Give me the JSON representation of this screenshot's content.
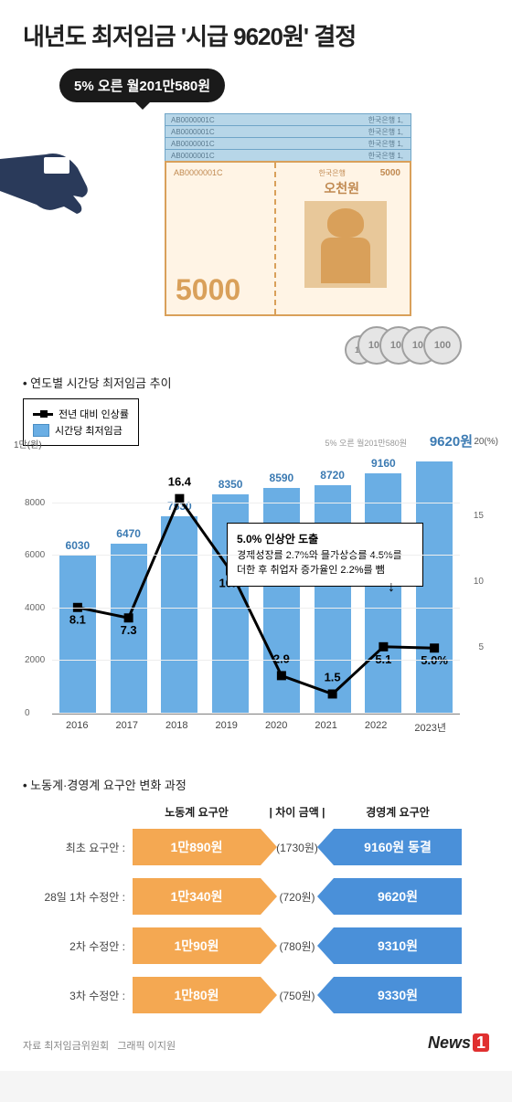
{
  "title_pre": "내년도 최저임금 ",
  "title_hl": "'시급 9620원'",
  "title_post": " 결정",
  "bubble": "5% 오른 월201만580원",
  "bills_small": [
    {
      "serial": "AB0000001C",
      "bank": "한국은행",
      "denom": "1,"
    },
    {
      "serial": "AB0000001C",
      "bank": "한국은행",
      "denom": "1,"
    },
    {
      "serial": "AB0000001C",
      "bank": "한국은행",
      "denom": "1,"
    },
    {
      "serial": "AB0000001C",
      "bank": "한국은행",
      "denom": "1,"
    }
  ],
  "bill5000": {
    "serial": "AB0000001C",
    "bank": "한국은행",
    "denom_kr": "오천원",
    "denom_sm": "5000",
    "big": "5000"
  },
  "coins": [
    "10",
    "100",
    "100",
    "100",
    "100"
  ],
  "chart_title": "연도별 시간당 최저임금 추이",
  "legend": {
    "line": "전년 대비 인상률",
    "bar": "시간당 최저임금"
  },
  "y_left_unit": "1만(원)",
  "y_right_unit": "20(%)",
  "y_left_ticks": [
    "0",
    "2000",
    "4000",
    "6000",
    "8000"
  ],
  "y_right_ticks": [
    "5",
    "10",
    "15"
  ],
  "years": [
    "2016",
    "2017",
    "2018",
    "2019",
    "2020",
    "2021",
    "2022",
    "2023년"
  ],
  "wages": [
    6030,
    6470,
    7530,
    8350,
    8590,
    8720,
    9160,
    9620
  ],
  "wage_labels": [
    "6030",
    "6470",
    "7530",
    "8350",
    "8590",
    "8720",
    "9160",
    "9620원"
  ],
  "rates": [
    8.1,
    7.3,
    16.4,
    10.9,
    2.9,
    1.5,
    5.1,
    5.0
  ],
  "rate_labels": [
    "8.1",
    "7.3",
    "16.4",
    "10.9",
    "2.9",
    "1.5",
    "5.1",
    "5.0%"
  ],
  "wage_max": 10000,
  "rate_max": 20,
  "bar_color": "#6aaee4",
  "small_note": "5% 오른 월201만580원",
  "wage_final": "9620원",
  "annotation": {
    "b": "5.0% 인상안 도출",
    "line1": "경제성장률 2.7%와 물가상승률 4.5%를",
    "line2": "더한 후 취업자 증가율인 2.2%를 뺌"
  },
  "section2_title": "노동계·경영계 요구안 변화 과정",
  "prop_headers": {
    "labor": "노동계 요구안",
    "gap": "차이 금액",
    "mgmt": "경영계 요구안"
  },
  "proposals": [
    {
      "label": "최초 요구안 :",
      "labor": "1만890원",
      "gap": "(1730원)",
      "mgmt": "9160원 동결"
    },
    {
      "label": "28일 1차 수정안 :",
      "labor": "1만340원",
      "gap": "(720원)",
      "mgmt": "9620원"
    },
    {
      "label": "2차 수정안 :",
      "labor": "1만90원",
      "gap": "(780원)",
      "mgmt": "9310원"
    },
    {
      "label": "3차 수정안 :",
      "labor": "1만80원",
      "gap": "(750원)",
      "mgmt": "9330원"
    }
  ],
  "source": "자료 최저임금위원회",
  "graphic": "그래픽 이지원",
  "logo_text": "News",
  "logo_one": "1",
  "colors": {
    "labor": "#f4a852",
    "mgmt": "#4a90d9",
    "line": "#000000"
  }
}
